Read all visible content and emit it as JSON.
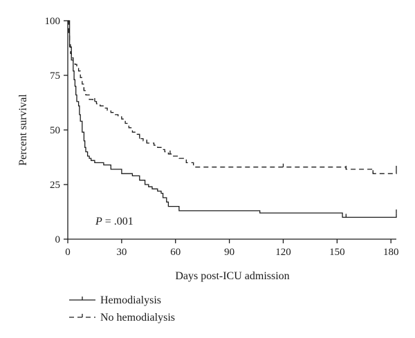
{
  "chart_data": {
    "type": "line",
    "subtype": "kaplan-meier",
    "title": "",
    "xlabel": "Days post-ICU admission",
    "ylabel": "Percent survival",
    "xlim": [
      0,
      183
    ],
    "ylim": [
      0,
      100
    ],
    "xticks": [
      0,
      30,
      60,
      90,
      120,
      150,
      180
    ],
    "yticks": [
      0,
      25,
      50,
      75,
      100
    ],
    "grid": false,
    "legend_position": "bottom-left",
    "annotation": {
      "italic": "P",
      "rest": " = .001"
    },
    "series": [
      {
        "name": "Hemodialysis",
        "line_style": "solid",
        "color": "#1a1a1a",
        "x": [
          0,
          1,
          2,
          3,
          3.5,
          4,
          4.5,
          5,
          6,
          6.5,
          7,
          8,
          9,
          9.5,
          10,
          11,
          12,
          13,
          15,
          20,
          24,
          30,
          36,
          40,
          43,
          45,
          47,
          50,
          52,
          53,
          55,
          56,
          62,
          107,
          153,
          183
        ],
        "y": [
          100,
          88,
          82,
          77,
          73,
          70,
          66,
          63,
          61,
          57,
          54,
          49,
          45,
          42,
          40,
          38,
          37,
          36,
          35,
          34,
          32,
          30,
          29,
          27,
          25,
          24,
          23,
          22,
          21,
          19,
          17,
          15,
          13,
          12,
          10,
          12
        ],
        "censor_x": [
          155,
          183
        ]
      },
      {
        "name": "No hemodialysis",
        "line_style": "dashed",
        "color": "#1a1a1a",
        "x": [
          0,
          0.5,
          1,
          1.5,
          2,
          3,
          4,
          5,
          6,
          7,
          8,
          9,
          10,
          12,
          14,
          16,
          18,
          20,
          22,
          24,
          26,
          28,
          30,
          32,
          34,
          36,
          38,
          40,
          42,
          44,
          46,
          48,
          50,
          52,
          54,
          56,
          58,
          62,
          66,
          70,
          120,
          155,
          170,
          183
        ],
        "y": [
          100,
          93,
          89,
          85,
          83,
          81,
          80,
          79,
          77,
          74,
          71,
          68,
          66,
          64,
          63,
          62,
          61,
          60,
          59,
          58,
          57,
          56,
          55,
          53,
          51,
          49,
          48,
          46,
          45,
          44,
          44,
          43,
          42,
          41,
          40,
          39,
          38,
          37,
          35,
          33,
          33,
          32,
          30,
          32
        ],
        "censor_x": [
          9,
          15,
          40,
          44,
          57,
          120,
          155,
          170,
          183
        ]
      }
    ]
  }
}
